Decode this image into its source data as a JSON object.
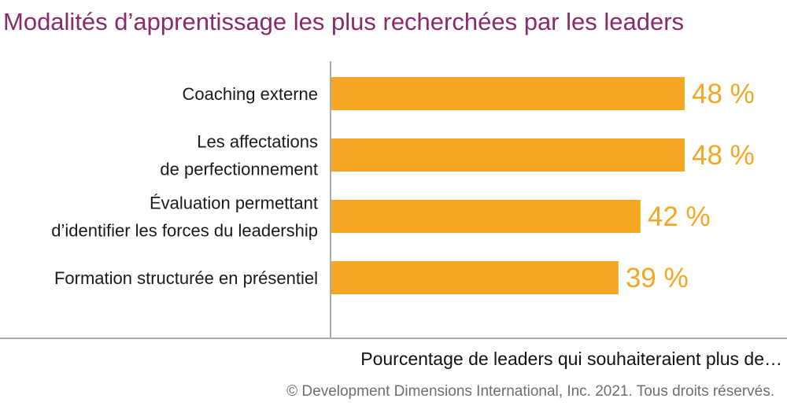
{
  "chart_data": {
    "type": "bar",
    "orientation": "horizontal",
    "title": "Modalités d’apprentissage les plus recherchées par les leaders",
    "xlabel": "Pourcentage de leaders qui souhaiteraient plus de…",
    "categories": [
      [
        "Coaching externe"
      ],
      [
        "Les affectations",
        "de perfectionnement"
      ],
      [
        "Évaluation permettant",
        "d’identifier les forces du leadership"
      ],
      [
        "Formation structurée en présentiel"
      ]
    ],
    "values": [
      48,
      48,
      42,
      39
    ],
    "value_labels": [
      "48 %",
      "48 %",
      "42 %",
      "39 %"
    ],
    "xlim": [
      0,
      48
    ],
    "bar_color": "#f5a623",
    "label_color": "#f5a623",
    "axis_color": "#aaaaaa",
    "grid": false,
    "legend": "none"
  },
  "footer": {
    "copyright": "© Development Dimensions International, Inc. 2021. Tous droits réservés."
  }
}
